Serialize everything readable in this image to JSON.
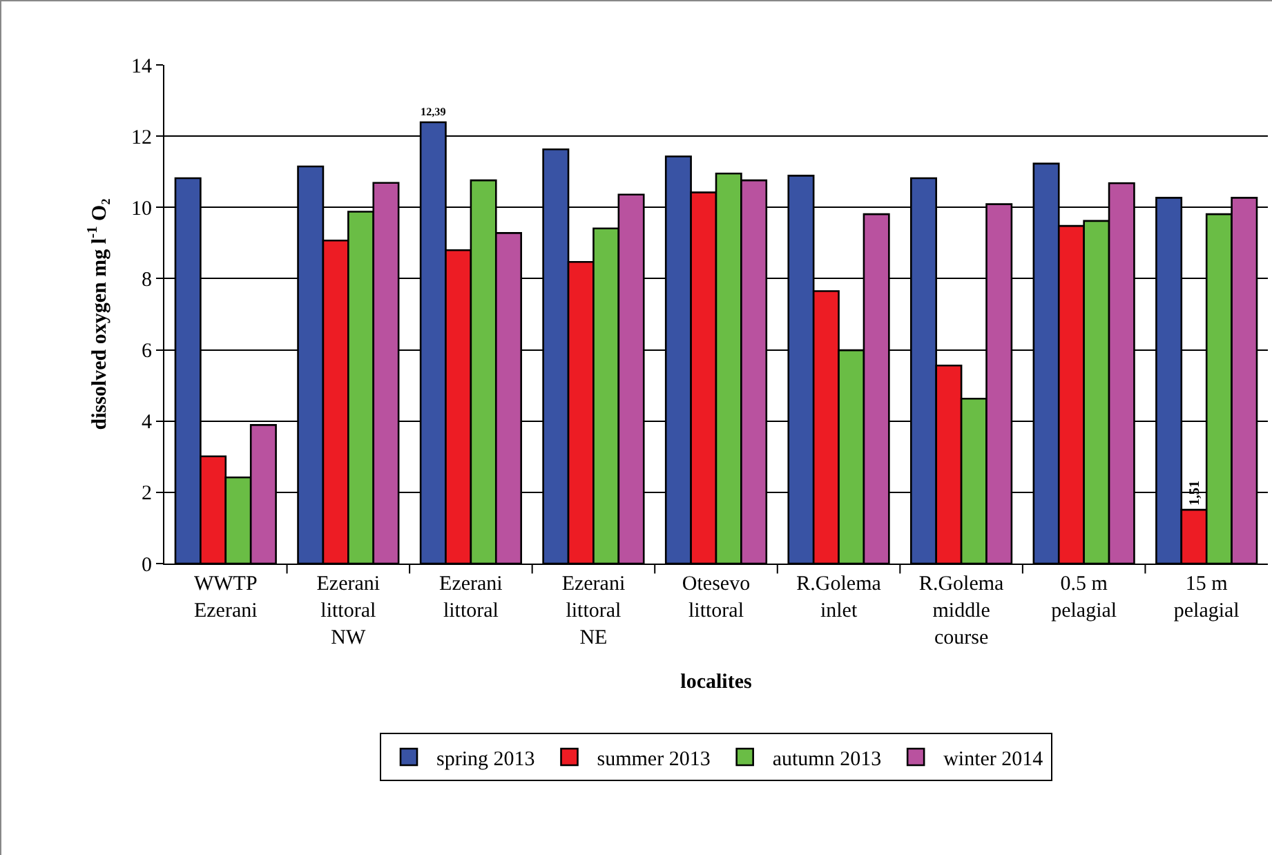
{
  "chart_data": {
    "type": "bar",
    "xlabel": "localites",
    "ylabel": "dissolved oxygen mg l$^{-1}$ O₂",
    "categories": [
      "WWTP\nEzerani",
      "Ezerani\nlittoral\nNW",
      "Ezerani\nlittoral",
      "Ezerani\nlittoral\nNE",
      "Otesevo\nlittoral",
      "R.Golema\ninlet",
      "R.Golema\nmiddle\ncourse",
      "0.5 m\npelagial",
      "15 m\npelagial"
    ],
    "series": [
      {
        "name": "spring 2013",
        "color": "#3953a4",
        "values": [
          10.82,
          11.15,
          12.39,
          11.63,
          11.43,
          10.89,
          10.82,
          11.23,
          10.27
        ],
        "value_labels": [
          null,
          null,
          "12,39",
          null,
          null,
          null,
          null,
          null,
          null
        ]
      },
      {
        "name": "summer 2013",
        "color": "#ed1c24",
        "values": [
          3.01,
          9.07,
          8.8,
          8.47,
          10.42,
          7.65,
          5.56,
          9.48,
          1.51
        ],
        "value_labels": [
          null,
          null,
          null,
          null,
          null,
          null,
          null,
          null,
          "1,51"
        ]
      },
      {
        "name": "autumn 2013",
        "color": "#6abd45",
        "values": [
          2.42,
          9.88,
          10.76,
          9.41,
          10.95,
          5.99,
          4.63,
          9.62,
          9.81
        ]
      },
      {
        "name": "winter 2014",
        "color": "#b9529f",
        "values": [
          3.89,
          10.69,
          9.28,
          10.36,
          10.76,
          9.81,
          10.09,
          10.68,
          10.27
        ]
      }
    ],
    "ylim": [
      0,
      14
    ],
    "yticks": [
      0,
      2,
      4,
      6,
      8,
      10,
      12,
      14
    ],
    "grid": "y",
    "legend": "bottom"
  }
}
